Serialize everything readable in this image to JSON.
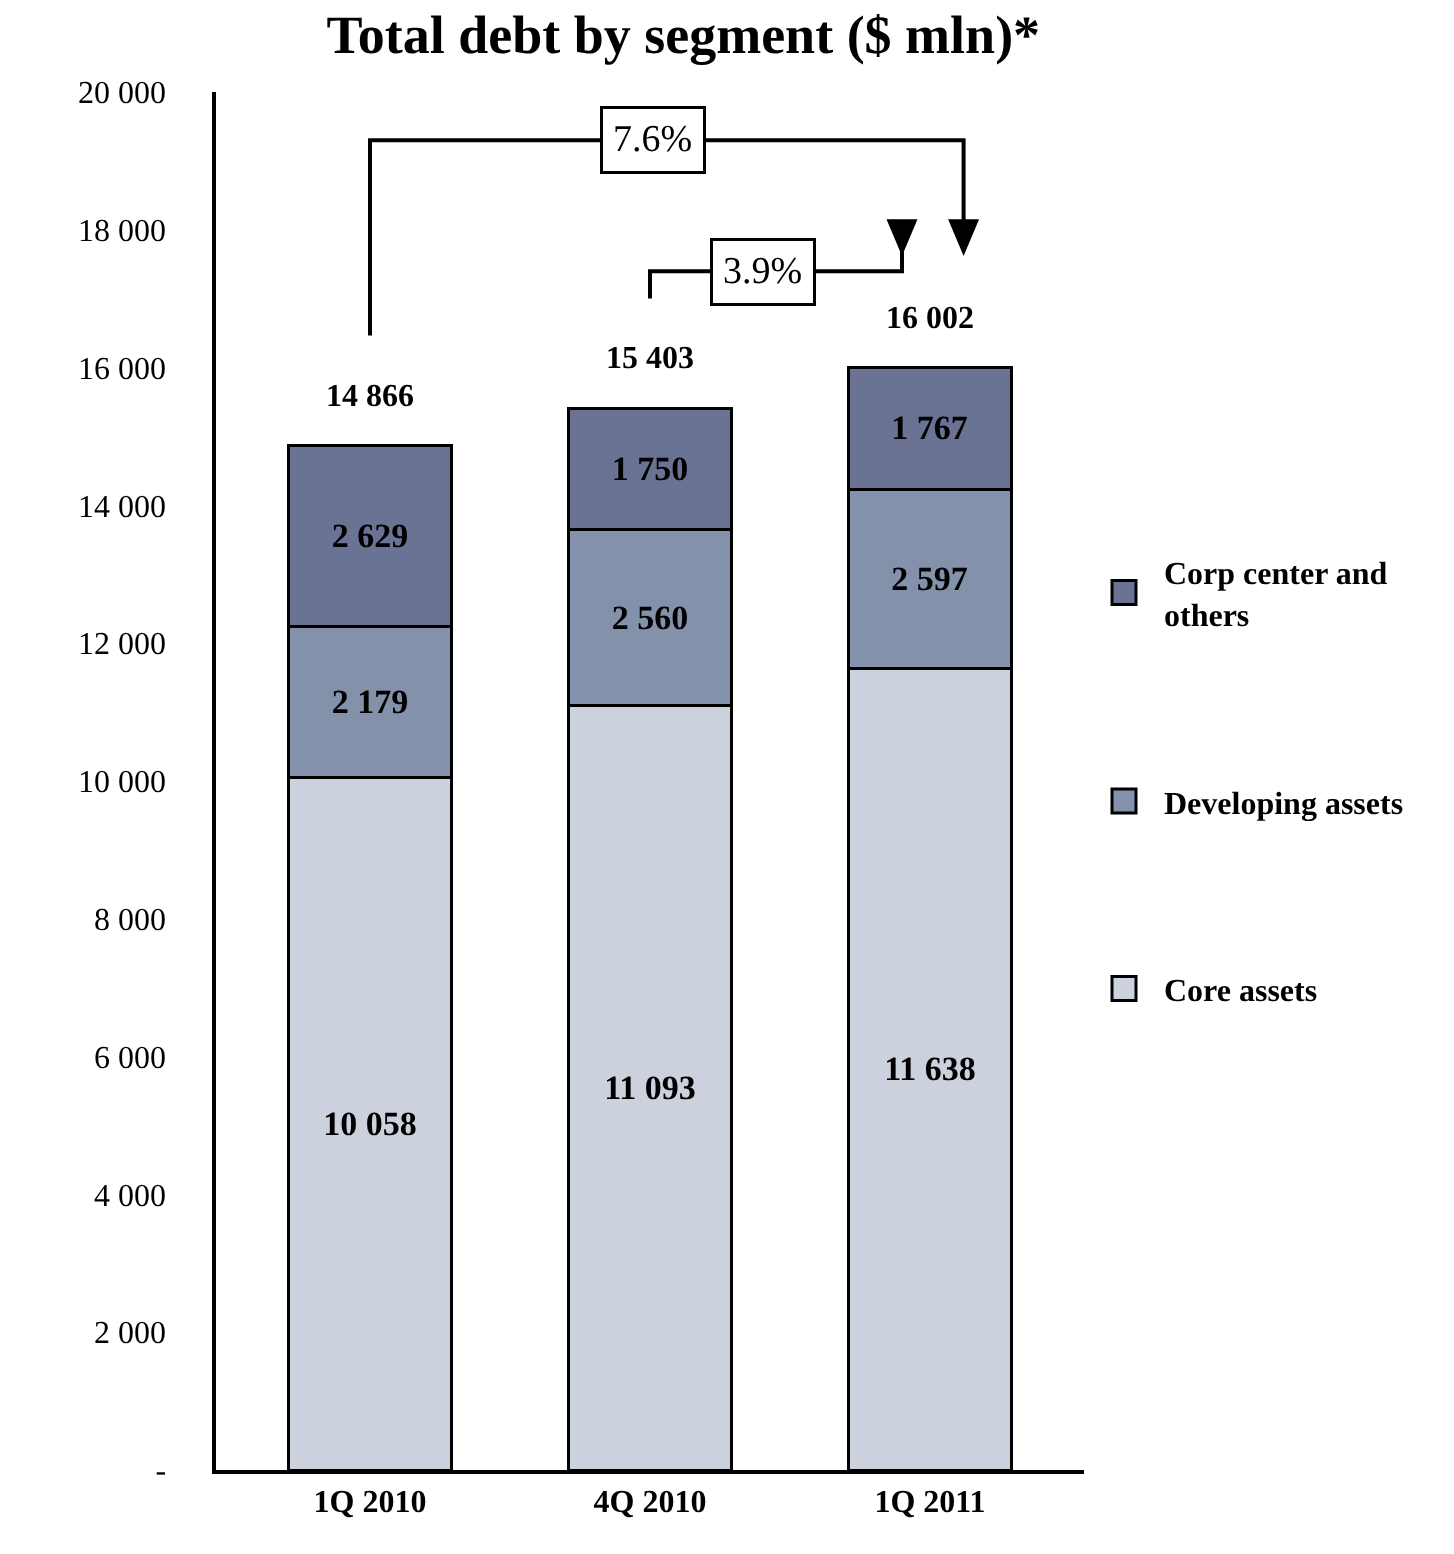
{
  "chart_data": {
    "type": "bar",
    "title": "Total debt by segment ($ mln)*",
    "stacked": true,
    "legend": "right",
    "categories": [
      "1Q 2010",
      "4Q 2010",
      "1Q 2011"
    ],
    "series": [
      {
        "name": "Core assets",
        "color": "#ccd1de",
        "values": [
          10058,
          11093,
          11638
        ],
        "value_labels": [
          "10 058",
          "11 093",
          "11 638"
        ]
      },
      {
        "name": "Developing assets",
        "color": "#8391ab",
        "values": [
          2179,
          2560,
          2597
        ],
        "value_labels": [
          "2 179",
          "2 560",
          "2 597"
        ]
      },
      {
        "name": "Corp center and others",
        "color": "#6a7394",
        "values": [
          2629,
          1750,
          1767
        ],
        "value_labels": [
          "2 629",
          "1 750",
          "1 767"
        ]
      }
    ],
    "totals": [
      "14 866",
      "15 403",
      "16 002"
    ],
    "ylim": [
      0,
      20000
    ],
    "yticks": [
      {
        "value": 0,
        "label": "-"
      },
      {
        "value": 2000,
        "label": "2 000"
      },
      {
        "value": 4000,
        "label": "4 000"
      },
      {
        "value": 6000,
        "label": "6 000"
      },
      {
        "value": 8000,
        "label": "8 000"
      },
      {
        "value": 10000,
        "label": "10 000"
      },
      {
        "value": 12000,
        "label": "12 000"
      },
      {
        "value": 14000,
        "label": "14 000"
      },
      {
        "value": 16000,
        "label": "16 000"
      },
      {
        "value": 18000,
        "label": "18 000"
      },
      {
        "value": 20000,
        "label": "20 000"
      }
    ],
    "annotations": [
      "7.6%",
      "3.9%"
    ]
  }
}
